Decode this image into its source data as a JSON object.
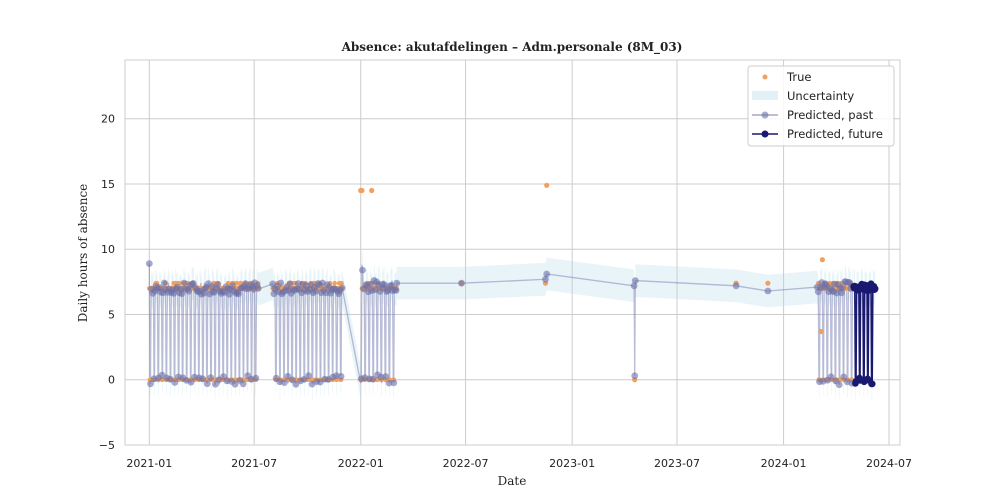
{
  "chart_data": {
    "type": "line",
    "title": "Absence: akutafdelingen – Adm.personale (8M_03)",
    "xlabel": "Date",
    "ylabel": "Daily hours of absence",
    "x_ticks": [
      "2021-01",
      "2021-07",
      "2022-01",
      "2022-07",
      "2023-01",
      "2023-07",
      "2024-01",
      "2024-07"
    ],
    "x_range": [
      "2020-11-20",
      "2024-07-20"
    ],
    "y_ticks": [
      -5,
      0,
      5,
      10,
      15,
      20
    ],
    "y_range": [
      -5,
      24.5
    ],
    "grid": true,
    "legend_position": "top-right",
    "legend": [
      "True",
      "Uncertainty",
      "Predicted, past",
      "Predicted, future"
    ],
    "colors": {
      "true": "#f0a060",
      "uncertainty": "#add8e6",
      "past": "#6b6fa8",
      "future": "#191970",
      "grid": "#cccccc",
      "frame": "#cccccc"
    },
    "series_true_notable": [
      {
        "date": "2022-01-01",
        "value": 14.5
      },
      {
        "date": "2022-01-03",
        "value": 14.5
      },
      {
        "date": "2022-01-20",
        "value": 14.5
      },
      {
        "date": "2022-11-18",
        "value": 14.9
      },
      {
        "date": "2022-11-16",
        "value": 7.4
      },
      {
        "date": "2022-06-24",
        "value": 7.4
      },
      {
        "date": "2023-04-19",
        "value": 0
      },
      {
        "date": "2023-10-11",
        "value": 7.4
      },
      {
        "date": "2023-12-05",
        "value": 7.4
      },
      {
        "date": "2024-03-08",
        "value": 9.2
      },
      {
        "date": "2024-03-06",
        "value": 3.7
      }
    ],
    "series_past_sparse": [
      {
        "date": "2022-03-04",
        "value": 7.4
      },
      {
        "date": "2022-06-24",
        "value": 7.4
      },
      {
        "date": "2022-11-16",
        "value": 7.7
      },
      {
        "date": "2022-11-18",
        "value": 8.1
      },
      {
        "date": "2023-04-18",
        "value": 7.2
      },
      {
        "date": "2023-04-19",
        "value": 0.3
      },
      {
        "date": "2023-04-20",
        "value": 7.6
      },
      {
        "date": "2023-10-11",
        "value": 7.2
      },
      {
        "date": "2023-12-05",
        "value": 6.8
      },
      {
        "date": "2024-02-28",
        "value": 7.1
      }
    ],
    "dense_segments": [
      {
        "start": "2021-01-01",
        "end": "2021-07-09",
        "workday_value": 7.0,
        "weekend_value": 0.0
      },
      {
        "start": "2021-08-02",
        "end": "2021-11-30",
        "workday_value": 7.0,
        "weekend_value": 0.0
      },
      {
        "start": "2022-01-01",
        "end": "2022-03-04",
        "workday_value": 7.2,
        "weekend_value": 0.1
      },
      {
        "start": "2024-03-01",
        "end": "2024-04-30",
        "workday_value": 7.1,
        "weekend_value": 0.0
      }
    ],
    "future_segment": {
      "start": "2024-05-01",
      "end": "2024-06-07",
      "workday_value": 7.1,
      "weekend_value": -0.1
    }
  }
}
